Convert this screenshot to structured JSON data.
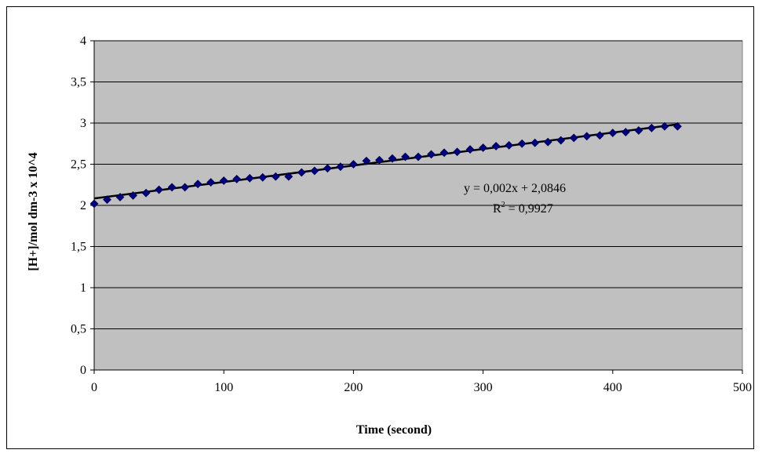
{
  "chart_data": {
    "type": "scatter",
    "title": "",
    "xlabel": "Time (second)",
    "ylabel": "[H+]/mol dm-3 x 10^4",
    "xlim": [
      0,
      500
    ],
    "ylim": [
      0,
      4
    ],
    "x_ticks": [
      0,
      100,
      200,
      300,
      400,
      500
    ],
    "x_tick_labels": [
      "0",
      "100",
      "200",
      "300",
      "400",
      "500"
    ],
    "y_ticks": [
      0,
      0.5,
      1,
      1.5,
      2,
      2.5,
      3,
      3.5,
      4
    ],
    "y_tick_labels": [
      "0",
      "0,5",
      "1",
      "1,5",
      "2",
      "2,5",
      "3",
      "3,5",
      "4"
    ],
    "grid": "horizontal",
    "legend": "none",
    "plot_background": "#c0c0c0",
    "marker_color": "#000080",
    "trend_color": "#000000",
    "marker": "diamond",
    "series": [
      {
        "x": [
          0,
          10,
          20,
          30,
          40,
          50,
          60,
          70,
          80,
          90,
          100,
          110,
          120,
          130,
          140,
          150,
          160,
          170,
          180,
          190,
          200,
          210,
          220,
          230,
          240,
          250,
          260,
          270,
          280,
          290,
          300,
          310,
          320,
          330,
          340,
          350,
          360,
          370,
          380,
          390,
          400,
          410,
          420,
          430,
          440,
          450
        ],
        "y": [
          2.02,
          2.07,
          2.1,
          2.12,
          2.15,
          2.19,
          2.22,
          2.22,
          2.26,
          2.28,
          2.3,
          2.32,
          2.33,
          2.34,
          2.35,
          2.35,
          2.4,
          2.42,
          2.45,
          2.47,
          2.5,
          2.54,
          2.55,
          2.57,
          2.59,
          2.59,
          2.62,
          2.64,
          2.65,
          2.68,
          2.7,
          2.72,
          2.73,
          2.75,
          2.76,
          2.77,
          2.79,
          2.82,
          2.84,
          2.85,
          2.88,
          2.89,
          2.91,
          2.94,
          2.96,
          2.96
        ]
      }
    ],
    "trendline": {
      "slope": 0.002,
      "intercept": 2.0846,
      "equation_label": "y = 0,002x + 2,0846",
      "r2_prefix": "R",
      "r2_superscript": "2",
      "r2_value": " = 0,9927"
    }
  }
}
